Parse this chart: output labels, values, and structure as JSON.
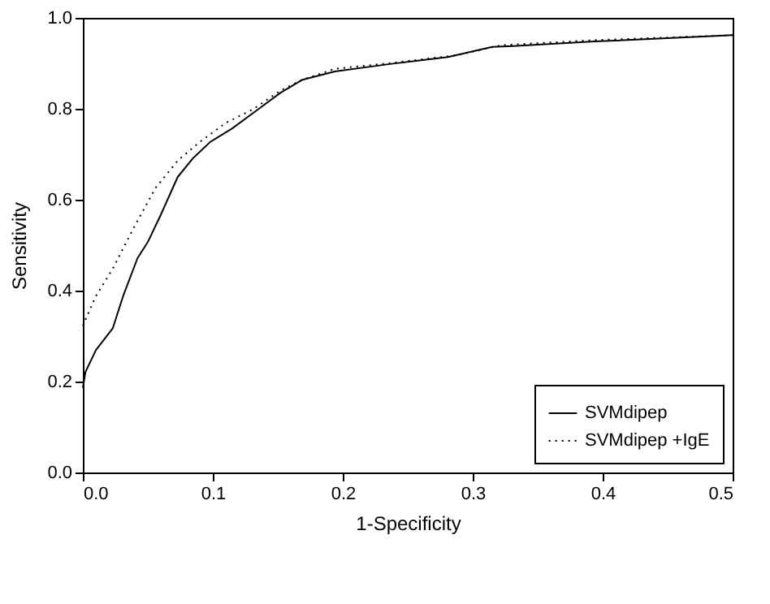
{
  "chart_data": {
    "type": "line",
    "xlabel": "1-Specificity",
    "ylabel": "Sensitivity",
    "xlim": [
      0,
      0.5
    ],
    "ylim": [
      0,
      1.0
    ],
    "xticks": [
      {
        "value": 0,
        "label": "0.0"
      },
      {
        "value": 0.1,
        "label": "0.1"
      },
      {
        "value": 0.2,
        "label": "0.2"
      },
      {
        "value": 0.3,
        "label": "0.3"
      },
      {
        "value": 0.4,
        "label": "0.4"
      },
      {
        "value": 0.5,
        "label": "0.5"
      }
    ],
    "yticks": [
      {
        "value": 0,
        "label": "0.0"
      },
      {
        "value": 0.2,
        "label": "0.2"
      },
      {
        "value": 0.4,
        "label": "0.4"
      },
      {
        "value": 0.6,
        "label": "0.6"
      },
      {
        "value": 0.8,
        "label": "0.8"
      },
      {
        "value": 1.0,
        "label": "1.0"
      }
    ],
    "grid": false,
    "legend": "bottom right",
    "marker": "none",
    "series": [
      {
        "name": "SVMdipep",
        "color": "#000000",
        "line_style": "solid",
        "x": [
          0,
          0.002,
          0.01,
          0.023,
          0.031,
          0.042,
          0.05,
          0.06,
          0.073,
          0.085,
          0.098,
          0.115,
          0.135,
          0.152,
          0.169,
          0.194,
          0.235,
          0.281,
          0.315,
          0.331,
          0.394,
          0.477,
          0.5
        ],
        "values": [
          0.186,
          0.221,
          0.269,
          0.317,
          0.388,
          0.471,
          0.507,
          0.567,
          0.65,
          0.692,
          0.727,
          0.757,
          0.799,
          0.835,
          0.864,
          0.882,
          0.898,
          0.914,
          0.936,
          0.938,
          0.948,
          0.959,
          0.962
        ]
      },
      {
        "name": "SVMdipep +IgE",
        "color": "#000000",
        "line_style": "dotted",
        "x": [
          0,
          0.01,
          0.023,
          0.04,
          0.056,
          0.073,
          0.09,
          0.11,
          0.131,
          0.152,
          0.169,
          0.194,
          0.235,
          0.288,
          0.322,
          0.394,
          0.5
        ],
        "values": [
          0.323,
          0.388,
          0.448,
          0.543,
          0.626,
          0.686,
          0.727,
          0.769,
          0.799,
          0.84,
          0.864,
          0.888,
          0.9,
          0.918,
          0.94,
          0.951,
          0.962
        ]
      }
    ]
  }
}
